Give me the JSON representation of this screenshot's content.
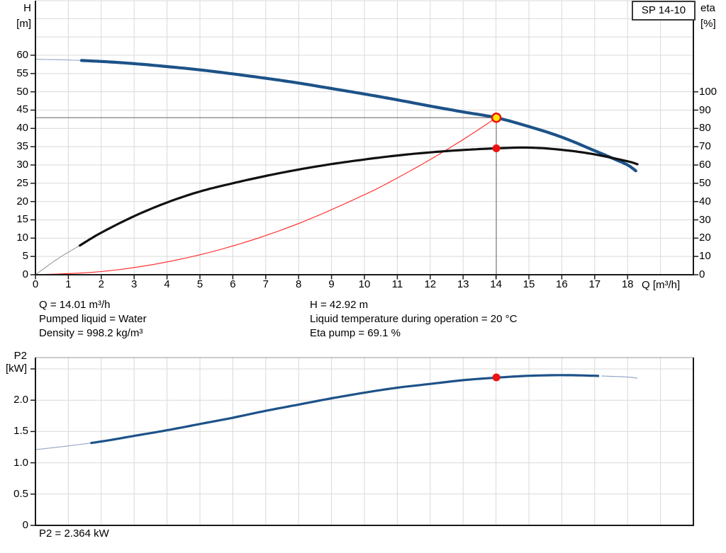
{
  "title_box": {
    "label": "SP 14-10"
  },
  "colors": {
    "grid": "#d9d9d9",
    "axis": "#1a1a1a",
    "crosshair": "#808080",
    "marker_yellow": "#ffe800",
    "marker_red": "#ee1111",
    "text": "#000000"
  },
  "info_panel": {
    "left": [
      "Q = 14.01 m³/h",
      "Pumped liquid = Water",
      "Density = 998.2 kg/m³"
    ],
    "right": [
      "H = 42.92 m",
      "Liquid temperature during operation = 20 °C",
      "Eta pump = 69.1 %"
    ]
  },
  "p2_result": "P2 = 2.364 kW",
  "chart_data": [
    {
      "type": "line",
      "title": "SP 14-10",
      "x_axis": {
        "label": "Q [m³/h]",
        "min": 0,
        "max": 20,
        "ticks": [
          0,
          1,
          2,
          3,
          4,
          5,
          6,
          7,
          8,
          9,
          10,
          11,
          12,
          13,
          14,
          15,
          16,
          17,
          18
        ],
        "grid": true
      },
      "y_axis_left": {
        "title_line1": "H",
        "title_line2": "[m]",
        "min": 0,
        "max": 75,
        "ticks": [
          0,
          5,
          10,
          15,
          20,
          25,
          30,
          35,
          40,
          45,
          50,
          55,
          60
        ],
        "grid": true
      },
      "y_axis_right": {
        "title_line1": "eta",
        "title_line2": "[%]",
        "min": 0,
        "max": 100,
        "ticks": [
          0,
          10,
          20,
          30,
          40,
          50,
          60,
          70,
          80,
          90,
          100
        ]
      },
      "series": [
        {
          "name": "head-curve",
          "axis": "H",
          "color": "#1d5288",
          "thin_color": "#93a7c4",
          "width": 4.2,
          "thin_until": 1.35,
          "points": [
            [
              0,
              58.9
            ],
            [
              1,
              58.7
            ],
            [
              2,
              58.3
            ],
            [
              3,
              57.7
            ],
            [
              4,
              56.9
            ],
            [
              5,
              56.0
            ],
            [
              6,
              54.9
            ],
            [
              7,
              53.7
            ],
            [
              8,
              52.4
            ],
            [
              9,
              50.9
            ],
            [
              10,
              49.4
            ],
            [
              11,
              47.8
            ],
            [
              12,
              46.1
            ],
            [
              13,
              44.5
            ],
            [
              14,
              42.95
            ],
            [
              15,
              40.5
            ],
            [
              16,
              37.6
            ],
            [
              17,
              33.9
            ],
            [
              17.5,
              32.0
            ],
            [
              18,
              30.0
            ],
            [
              18.25,
              28.4
            ]
          ]
        },
        {
          "name": "efficiency-curve",
          "axis": "eta",
          "color": "#111111",
          "thin_color": "#9a9a9a",
          "width": 3.2,
          "thin_until": 1.35,
          "points": [
            [
              0,
              0
            ],
            [
              0.7,
              9
            ],
            [
              1.35,
              16
            ],
            [
              2,
              23
            ],
            [
              3,
              32
            ],
            [
              4,
              39.5
            ],
            [
              5,
              45.5
            ],
            [
              6,
              50
            ],
            [
              7,
              54
            ],
            [
              8,
              57.5
            ],
            [
              9,
              60.5
            ],
            [
              10,
              63
            ],
            [
              11,
              65.2
            ],
            [
              12,
              66.9
            ],
            [
              13,
              68.2
            ],
            [
              14,
              69.1
            ],
            [
              15,
              69.5
            ],
            [
              16,
              68.3
            ],
            [
              17,
              65.8
            ],
            [
              18,
              62
            ],
            [
              18.3,
              60.4
            ]
          ]
        },
        {
          "name": "affinity-curve",
          "axis": "H",
          "color": "#ff2222",
          "thin_color": "#ff2222",
          "width": 1.1,
          "points": [
            [
              0,
              0
            ],
            [
              2,
              0.87
            ],
            [
              4,
              3.5
            ],
            [
              6,
              7.87
            ],
            [
              8,
              14.0
            ],
            [
              10,
              21.87
            ],
            [
              11,
              26.46
            ],
            [
              12,
              31.49
            ],
            [
              13,
              36.95
            ],
            [
              14.01,
              42.92
            ]
          ]
        }
      ],
      "duty_point": {
        "q": 14.01,
        "h": 42.92,
        "eta": 69.1
      }
    },
    {
      "type": "line",
      "x_axis": {
        "label": "",
        "min": 0,
        "max": 20,
        "ticks": [],
        "grid": true
      },
      "y_axis_left": {
        "title_line1": "P2",
        "title_line2": "[kW]",
        "min": 0,
        "max": 2.68,
        "ticks": [
          {
            "v": 0,
            "label": "0"
          },
          {
            "v": 0.5,
            "label": "0.5"
          },
          {
            "v": 1,
            "label": "1.0"
          },
          {
            "v": 1.5,
            "label": "1.5"
          },
          {
            "v": 2,
            "label": "2.0"
          },
          {
            "v": 2.5,
            "label": ""
          }
        ],
        "grid": true
      },
      "series": [
        {
          "name": "p2-curve",
          "axis": "P2",
          "color": "#1d5288",
          "thin_color": "#93a7c4",
          "width": 3.2,
          "thin_until": 1.7,
          "thin_after": 17.2,
          "points": [
            [
              0,
              1.21
            ],
            [
              1,
              1.27
            ],
            [
              2,
              1.34
            ],
            [
              3,
              1.43
            ],
            [
              4,
              1.52
            ],
            [
              5,
              1.62
            ],
            [
              6,
              1.72
            ],
            [
              7,
              1.83
            ],
            [
              8,
              1.93
            ],
            [
              9,
              2.03
            ],
            [
              10,
              2.12
            ],
            [
              11,
              2.2
            ],
            [
              12,
              2.26
            ],
            [
              13,
              2.32
            ],
            [
              14,
              2.36
            ],
            [
              15,
              2.39
            ],
            [
              16,
              2.4
            ],
            [
              17,
              2.39
            ],
            [
              18,
              2.37
            ],
            [
              18.3,
              2.35
            ]
          ]
        }
      ],
      "duty_point": {
        "q": 14.01,
        "p2": 2.364
      }
    }
  ]
}
